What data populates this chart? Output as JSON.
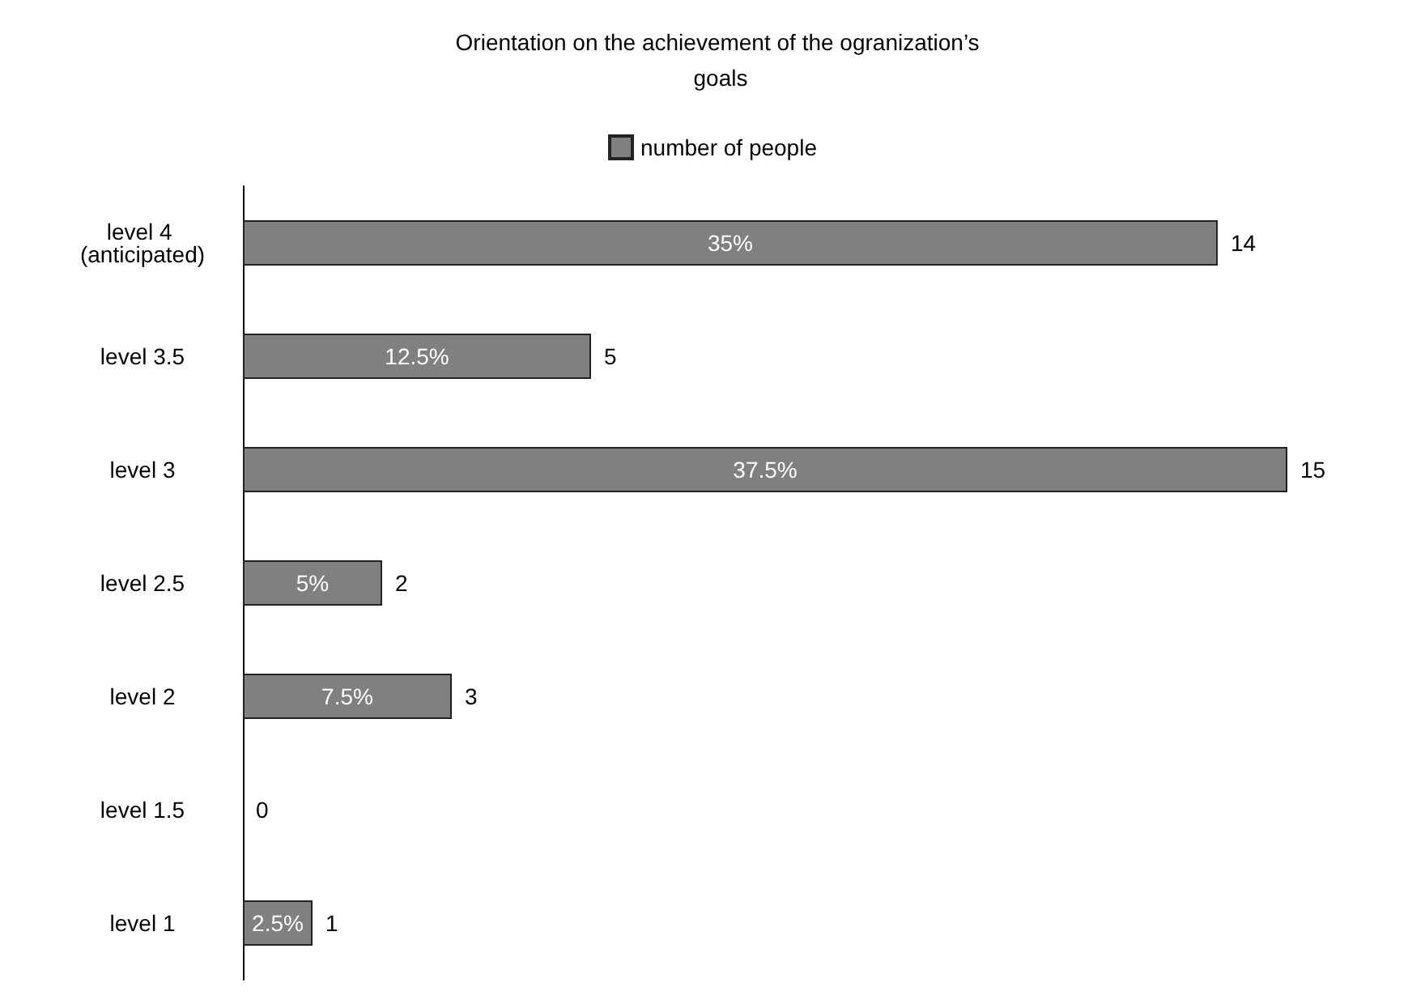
{
  "chart_data": {
    "type": "bar",
    "orientation": "horizontal",
    "title": "Orientation on the achievement of the ogranization’s goals",
    "categories": [
      "level 4 (anticipated)",
      "level 3.5",
      "level 3",
      "level 2.5",
      "level 2",
      "level 1.5",
      "level 1"
    ],
    "series": [
      {
        "name": "number of people",
        "color": "#808080",
        "values": [
          14,
          5,
          15,
          2,
          3,
          0,
          1
        ]
      }
    ],
    "annotations": [
      "35%",
      "12.5%",
      "37.5%",
      "5%",
      "7.5%",
      "2.5%"
    ],
    "data_labels": true,
    "legend": "top"
  }
}
